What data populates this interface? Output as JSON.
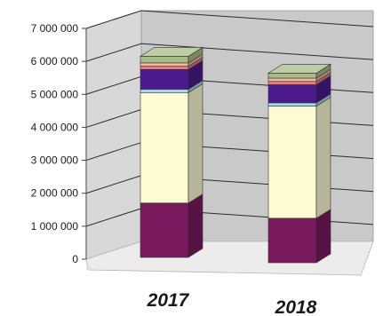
{
  "chart_data": {
    "type": "bar",
    "stacked": true,
    "three_d": true,
    "title": "",
    "xlabel": "",
    "ylabel": "",
    "ylim": [
      0,
      7000000
    ],
    "grid": true,
    "legend": "none",
    "categories": [
      "2017",
      "2018"
    ],
    "y_ticks": [
      "0",
      "1 000 000",
      "2 000 000",
      "3 000 000",
      "4 000 000",
      "5 000 000",
      "6 000 000",
      "7 000 000"
    ],
    "series": [
      {
        "color": "#7a1a5e",
        "values": [
          1650000,
          1350000
        ]
      },
      {
        "color": "#fdfbd2",
        "values": [
          3350000,
          3400000
        ]
      },
      {
        "color": "#a5d6ee",
        "values": [
          100000,
          100000
        ]
      },
      {
        "color": "#4b1a8c",
        "values": [
          600000,
          550000
        ]
      },
      {
        "color": "#ee7777",
        "values": [
          100000,
          100000
        ]
      },
      {
        "color": "#f2b8a0",
        "values": [
          100000,
          100000
        ]
      },
      {
        "color": "#a8bd86",
        "values": [
          200000,
          150000
        ]
      }
    ],
    "colors": {
      "back_wall": "#c9c9c9",
      "side_wall": "#d8d8d8",
      "floor": "#ececec",
      "gridline": "#2a2a2a"
    }
  }
}
